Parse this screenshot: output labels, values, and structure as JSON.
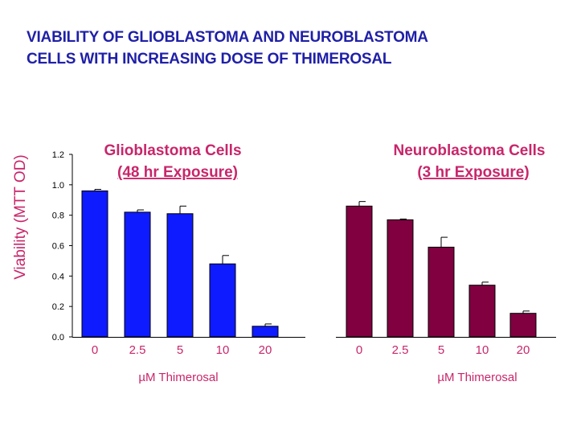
{
  "title": {
    "line1": "VIABILITY OF GLIOBLASTOMA AND NEUROBLASTOMA",
    "line2": "CELLS WITH INCREASING DOSE OF THIMEROSAL"
  },
  "chart_data": [
    {
      "type": "bar",
      "title": "Glioblastoma Cells",
      "subtitle": "(48 hr Exposure)",
      "xlabel": "µM Thimerosal",
      "ylabel": "Viability (MTT OD)",
      "categories": [
        "0",
        "2.5",
        "5",
        "10",
        "20"
      ],
      "values": [
        0.96,
        0.82,
        0.81,
        0.48,
        0.07
      ],
      "errors": [
        0.01,
        0.015,
        0.05,
        0.055,
        0.015
      ],
      "ylim": [
        0,
        1.2
      ],
      "yticks": [
        "0.0",
        "0.2",
        "0.4",
        "0.6",
        "0.8",
        "1.0",
        "1.2"
      ],
      "color": "#0f1bff"
    },
    {
      "type": "bar",
      "title": "Neuroblastoma Cells",
      "subtitle": "(3 hr Exposure)",
      "xlabel": "µM Thimerosal",
      "categories": [
        "0",
        "2.5",
        "5",
        "10",
        "20"
      ],
      "values": [
        0.86,
        0.77,
        0.59,
        0.34,
        0.155
      ],
      "errors": [
        0.03,
        0.005,
        0.065,
        0.02,
        0.015
      ],
      "ylim": [
        0,
        1.2
      ],
      "color": "#800040"
    }
  ]
}
